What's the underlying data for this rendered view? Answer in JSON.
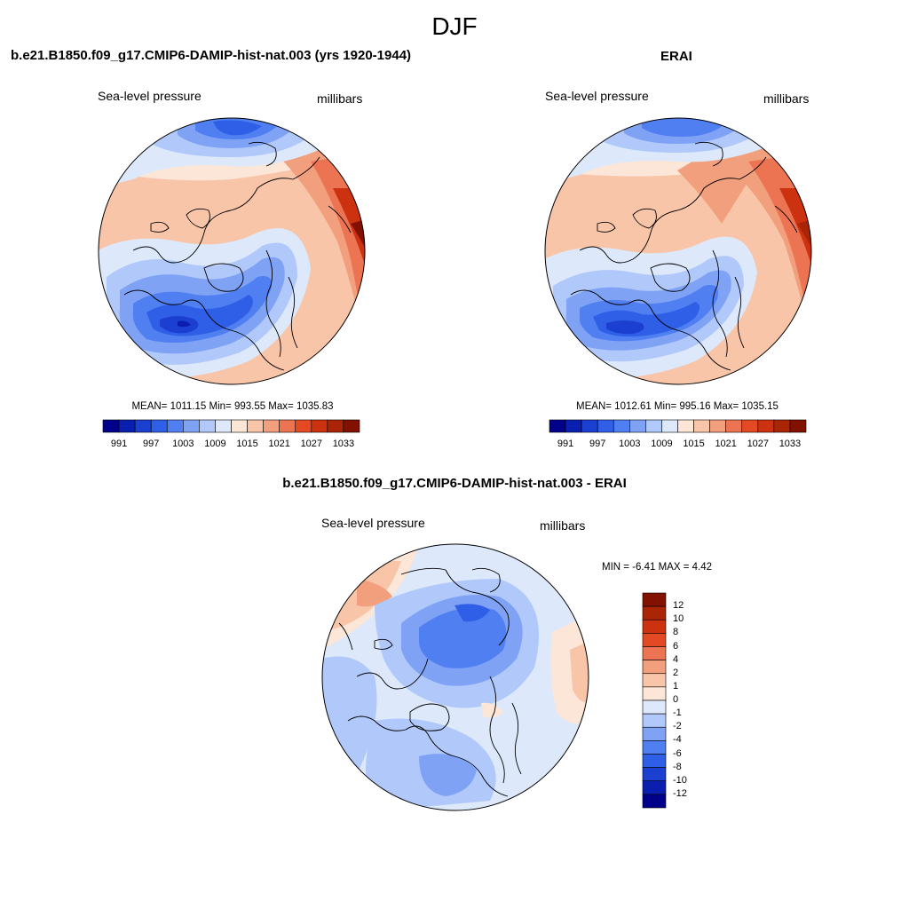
{
  "title": "DJF",
  "panels": [
    {
      "title": "b.e21.B1850.f09_g17.CMIP6-DAMIP-hist-nat.003 (yrs 1920-1944)",
      "left_label": "Sea-level pressure",
      "right_label": "millibars",
      "stats": "MEAN= 1011.15  Min= 993.55  Max= 1035.83",
      "colorbar_ticks": [
        "991",
        "997",
        "1003",
        "1009",
        "1015",
        "1021",
        "1027",
        "1033"
      ]
    },
    {
      "title": "ERAI",
      "left_label": "Sea-level pressure",
      "right_label": "millibars",
      "stats": "MEAN= 1012.61  Min= 995.16  Max= 1035.15",
      "colorbar_ticks": [
        "991",
        "997",
        "1003",
        "1009",
        "1015",
        "1021",
        "1027",
        "1033"
      ]
    },
    {
      "title": "b.e21.B1850.f09_g17.CMIP6-DAMIP-hist-nat.003 - ERAI",
      "left_label": "Sea-level pressure",
      "right_label": "millibars",
      "stats": "MIN =  -6.41 MAX =   4.42",
      "colorbar_ticks": [
        "12",
        "10",
        "8",
        "6",
        "4",
        "2",
        "1",
        "0",
        "-1",
        "-2",
        "-4",
        "-6",
        "-8",
        "-10",
        "-12"
      ]
    }
  ],
  "colors": {
    "full_scale": [
      "#00008b",
      "#0a1fb0",
      "#1a3fd1",
      "#2e5fe6",
      "#4f7ff0",
      "#7fa2f5",
      "#b0c8fa",
      "#dde9fb",
      "#fbe6d8",
      "#f8c5a9",
      "#f29f7e",
      "#ec7452",
      "#e34a24",
      "#cc3210",
      "#a92506",
      "#821100"
    ],
    "diff_scale": [
      "#821100",
      "#a92506",
      "#cc3210",
      "#e34a24",
      "#ec7452",
      "#f29f7e",
      "#f8c5a9",
      "#fbe6d8",
      "#dde9fb",
      "#b0c8fa",
      "#7fa2f5",
      "#4f7ff0",
      "#2e5fe6",
      "#1a3fd1",
      "#0a1fb0",
      "#00008b"
    ]
  }
}
